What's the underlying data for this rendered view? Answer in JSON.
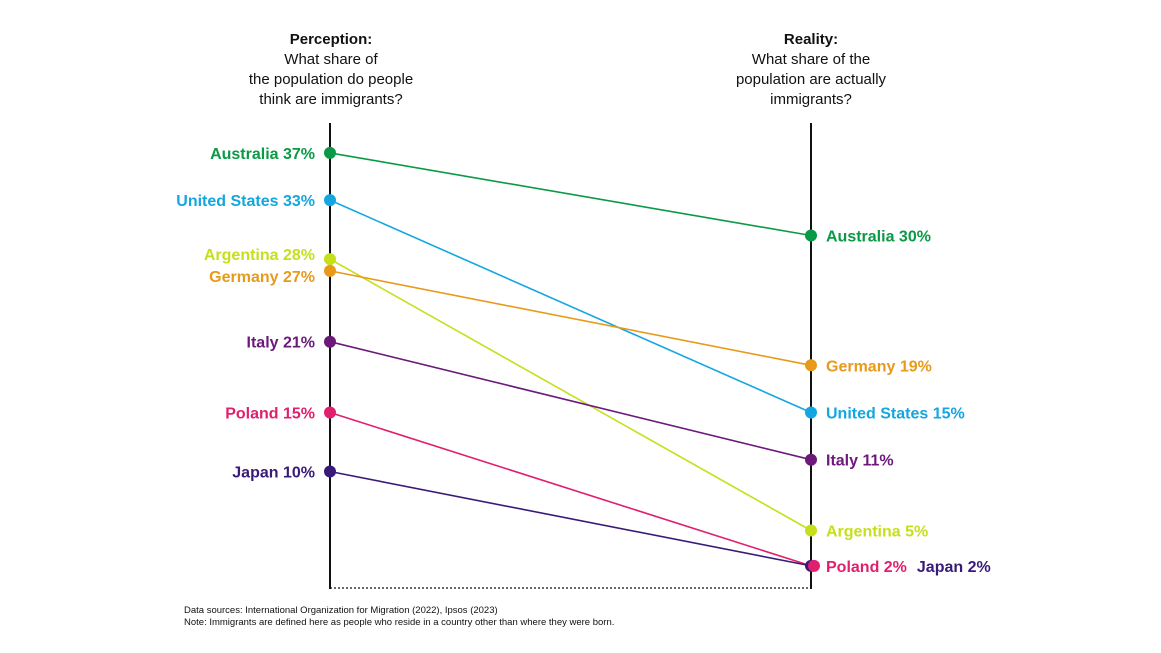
{
  "headers": {
    "left": {
      "title": "Perception:",
      "subtitle": "What share of\nthe population do people\nthink are immigrants?"
    },
    "right": {
      "title": "Reality:",
      "subtitle": "What share of the\npopulation are actually\nimmigrants?"
    }
  },
  "notes": {
    "sources": "Data sources: International Organization for Migration (2022), Ipsos (2023)",
    "note": "Note: Immigrants are defined here as people who reside in a country other than where they were born."
  },
  "chart_data": {
    "type": "line",
    "categories": [
      "Perception",
      "Reality"
    ],
    "y_unit": "%",
    "series": [
      {
        "name": "Australia",
        "color": "#0a9a45",
        "values": [
          37,
          30
        ]
      },
      {
        "name": "United States",
        "color": "#14a6e0",
        "values": [
          33,
          15
        ]
      },
      {
        "name": "Argentina",
        "color": "#c6df1c",
        "values": [
          28,
          5
        ]
      },
      {
        "name": "Germany",
        "color": "#e89a1a",
        "values": [
          27,
          19
        ]
      },
      {
        "name": "Italy",
        "color": "#6b1a7a",
        "values": [
          21,
          11
        ]
      },
      {
        "name": "Poland",
        "color": "#e0206e",
        "values": [
          15,
          2
        ]
      },
      {
        "name": "Japan",
        "color": "#3a1a78",
        "values": [
          10,
          2
        ]
      }
    ]
  }
}
